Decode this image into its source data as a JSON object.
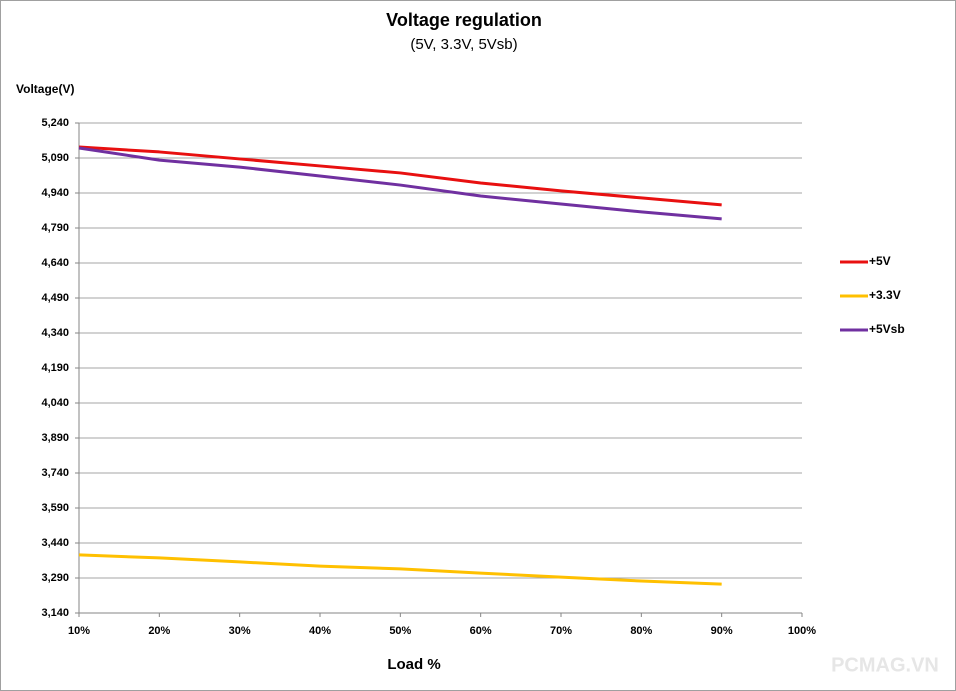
{
  "chart_data": {
    "type": "line",
    "title": "Voltage regulation",
    "subtitle": "(5V, 3.3V, 5Vsb)",
    "y_label": "Voltage(V)",
    "x_label": "Load %",
    "watermark": "PCMAG.VN",
    "categories": [
      "10%",
      "20%",
      "30%",
      "40%",
      "50%",
      "60%",
      "70%",
      "80%",
      "90%",
      "100%"
    ],
    "series": [
      {
        "name": "+5V",
        "color": "#e81010",
        "values": [
          5137,
          5116,
          5086,
          5056,
          5026,
          4983,
          4949,
          4919,
          4889,
          null
        ]
      },
      {
        "name": "+3.3V",
        "color": "#ffc000",
        "values": [
          3389,
          3376,
          3359,
          3341,
          3329,
          3311,
          3294,
          3277,
          3264,
          null
        ]
      },
      {
        "name": "+5Vsb",
        "color": "#7030a0",
        "values": [
          5133,
          5081,
          5051,
          5013,
          4974,
          4927,
          4893,
          4859,
          4829,
          null
        ]
      }
    ],
    "ylim": [
      3140,
      5240
    ],
    "yticks": [
      {
        "value": 3140,
        "label": "3,140"
      },
      {
        "value": 3290,
        "label": "3,290"
      },
      {
        "value": 3440,
        "label": "3,440"
      },
      {
        "value": 3590,
        "label": "3,590"
      },
      {
        "value": 3740,
        "label": "3,740"
      },
      {
        "value": 3890,
        "label": "3,890"
      },
      {
        "value": 4040,
        "label": "4,040"
      },
      {
        "value": 4190,
        "label": "4,190"
      },
      {
        "value": 4340,
        "label": "4,340"
      },
      {
        "value": 4490,
        "label": "4,490"
      },
      {
        "value": 4640,
        "label": "4,640"
      },
      {
        "value": 4790,
        "label": "4,790"
      },
      {
        "value": 4940,
        "label": "4,940"
      },
      {
        "value": 5090,
        "label": "5,090"
      },
      {
        "value": 5240,
        "label": "5,240"
      }
    ],
    "grid": true,
    "legend": "right"
  }
}
